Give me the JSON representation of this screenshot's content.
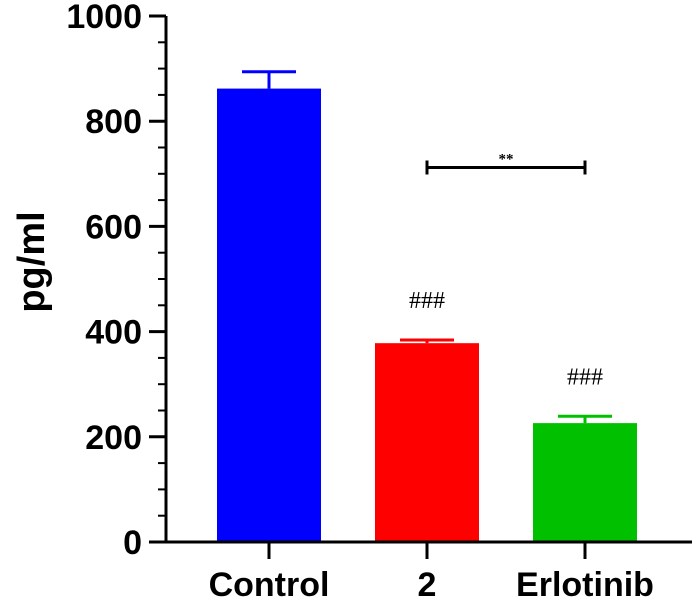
{
  "chart_data": {
    "type": "bar",
    "ylabel": "pg/ml",
    "xlabel": "",
    "ylim": [
      0,
      1000
    ],
    "yticks_major": [
      0,
      200,
      400,
      600,
      800,
      1000
    ],
    "yticks_minor_step": 50,
    "categories": [
      "Control",
      "2",
      "Erlotinib"
    ],
    "values": [
      862,
      378,
      226
    ],
    "errors": [
      32,
      6,
      13
    ],
    "colors": [
      "#0000ff",
      "#ff0000",
      "#00c000"
    ],
    "bar_annotations": [
      "",
      "###",
      "###"
    ],
    "comparison": {
      "from": "2",
      "to": "Erlotinib",
      "value": 712,
      "label": "**"
    },
    "grid": false,
    "legend": "none"
  }
}
